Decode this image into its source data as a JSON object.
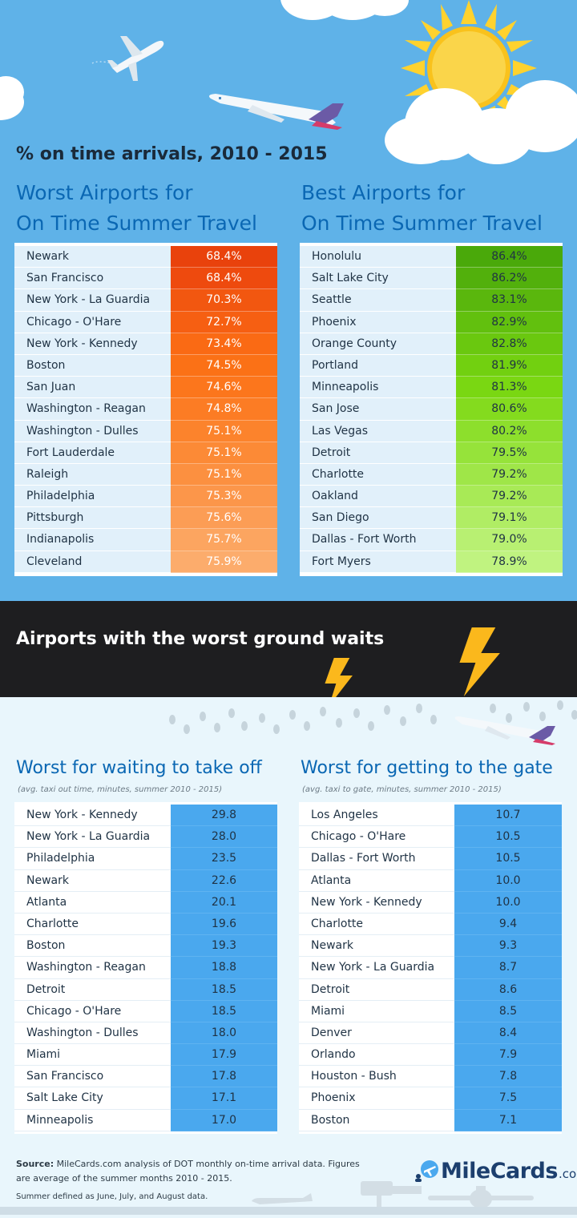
{
  "header": {
    "title": "% on time arrivals, 2010 - 2015"
  },
  "worst_on_time": {
    "title_line1": "Worst Airports for",
    "title_line2": "On Time Summer Travel",
    "rows": [
      {
        "name": "Newark",
        "value": "68.4%",
        "color": "#e9420c"
      },
      {
        "name": "San Francisco",
        "value": "68.4%",
        "color": "#ee4a0e"
      },
      {
        "name": "New York - La Guardia",
        "value": "70.3%",
        "color": "#f25710"
      },
      {
        "name": "Chicago - O'Hare",
        "value": "72.7%",
        "color": "#f65f12"
      },
      {
        "name": "New York - Kennedy",
        "value": "73.4%",
        "color": "#fa6a14"
      },
      {
        "name": "Boston",
        "value": "74.5%",
        "color": "#fb7116"
      },
      {
        "name": "San Juan",
        "value": "74.6%",
        "color": "#fc761c"
      },
      {
        "name": "Washington - Reagan",
        "value": "74.8%",
        "color": "#fc7c24"
      },
      {
        "name": "Washington - Dulles",
        "value": "75.1%",
        "color": "#fc832c"
      },
      {
        "name": "Fort Lauderdale",
        "value": "75.1%",
        "color": "#fc8a36"
      },
      {
        "name": "Raleigh",
        "value": "75.1%",
        "color": "#fc9040"
      },
      {
        "name": "Philadelphia",
        "value": "75.3%",
        "color": "#fc964a"
      },
      {
        "name": "Pittsburgh",
        "value": "75.6%",
        "color": "#fc9d55"
      },
      {
        "name": "Indianapolis",
        "value": "75.7%",
        "color": "#fca560"
      },
      {
        "name": "Cleveland",
        "value": "75.9%",
        "color": "#fcac6c"
      }
    ]
  },
  "best_on_time": {
    "title_line1": "Best Airports for",
    "title_line2": "On Time Summer Travel",
    "rows": [
      {
        "name": "Honolulu",
        "value": "86.4%",
        "color": "#4aa90a"
      },
      {
        "name": "Salt Lake City",
        "value": "86.2%",
        "color": "#52b00c"
      },
      {
        "name": "Seattle",
        "value": "83.1%",
        "color": "#5ab70d"
      },
      {
        "name": "Phoenix",
        "value": "82.9%",
        "color": "#62c00e"
      },
      {
        "name": "Orange County",
        "value": "82.8%",
        "color": "#6ac80f"
      },
      {
        "name": "Portland",
        "value": "81.9%",
        "color": "#72d010"
      },
      {
        "name": "Minneapolis",
        "value": "81.3%",
        "color": "#7ad712"
      },
      {
        "name": "San Jose",
        "value": "80.6%",
        "color": "#84db1e"
      },
      {
        "name": "Las Vegas",
        "value": "80.2%",
        "color": "#8ddf2c"
      },
      {
        "name": "Detroit",
        "value": "79.5%",
        "color": "#96e33a"
      },
      {
        "name": "Charlotte",
        "value": "79.2%",
        "color": "#9fe648"
      },
      {
        "name": "Oakland",
        "value": "79.2%",
        "color": "#a8ea56"
      },
      {
        "name": "San Diego",
        "value": "79.1%",
        "color": "#b0ed64"
      },
      {
        "name": "Dallas - Fort Worth",
        "value": "79.0%",
        "color": "#b8f072"
      },
      {
        "name": "Fort Myers",
        "value": "78.9%",
        "color": "#c0f380"
      }
    ]
  },
  "storm": {
    "title": "Airports with the worst ground waits"
  },
  "takeoff": {
    "title": "Worst for waiting to take off",
    "note": "(avg. taxi out time, minutes, summer 2010 - 2015)",
    "rows": [
      {
        "name": "New York - Kennedy",
        "value": "29.8"
      },
      {
        "name": "New York - La Guardia",
        "value": "28.0"
      },
      {
        "name": "Philadelphia",
        "value": "23.5"
      },
      {
        "name": "Newark",
        "value": "22.6"
      },
      {
        "name": "Atlanta",
        "value": "20.1"
      },
      {
        "name": "Charlotte",
        "value": "19.6"
      },
      {
        "name": "Boston",
        "value": "19.3"
      },
      {
        "name": "Washington - Reagan",
        "value": "18.8"
      },
      {
        "name": "Detroit",
        "value": "18.5"
      },
      {
        "name": "Chicago - O'Hare",
        "value": "18.5"
      },
      {
        "name": "Washington - Dulles",
        "value": "18.0"
      },
      {
        "name": "Miami",
        "value": "17.9"
      },
      {
        "name": "San Francisco",
        "value": "17.8"
      },
      {
        "name": "Salt Lake City",
        "value": "17.1"
      },
      {
        "name": "Minneapolis",
        "value": "17.0"
      }
    ]
  },
  "gate": {
    "title": "Worst for getting to the gate",
    "note": "(avg. taxi to gate, minutes, summer 2010 - 2015)",
    "rows": [
      {
        "name": "Los Angeles",
        "value": "10.7"
      },
      {
        "name": "Chicago - O'Hare",
        "value": "10.5"
      },
      {
        "name": "Dallas - Fort Worth",
        "value": "10.5"
      },
      {
        "name": "Atlanta",
        "value": "10.0"
      },
      {
        "name": "New York - Kennedy",
        "value": "10.0"
      },
      {
        "name": "Charlotte",
        "value": "9.4"
      },
      {
        "name": "Newark",
        "value": "9.3"
      },
      {
        "name": "New York - La Guardia",
        "value": "8.7"
      },
      {
        "name": "Detroit",
        "value": "8.6"
      },
      {
        "name": "Miami",
        "value": "8.5"
      },
      {
        "name": "Denver",
        "value": "8.4"
      },
      {
        "name": "Orlando",
        "value": "7.9"
      },
      {
        "name": "Houston - Bush",
        "value": "7.8"
      },
      {
        "name": "Phoenix",
        "value": "7.5"
      },
      {
        "name": "Boston",
        "value": "7.1"
      }
    ]
  },
  "footer": {
    "source_label": "Source:",
    "source_text": "MileCards.com analysis of DOT monthly on-time arrival data. Figures are average of the summer months 2010 - 2015.",
    "note": "Summer defined as June, July, and August data.",
    "logo_main": "MileCards",
    "logo_suffix": ".com"
  },
  "colors": {
    "sky": "#5fb2e8",
    "title_blue": "#0a67b3",
    "name_cell": "#e1f0fa",
    "bar_blue": "#4aa8ee",
    "storm": "#1e1e20",
    "lower_bg": "#e9f6fc"
  },
  "chart_data": [
    {
      "type": "table",
      "title": "Worst Airports for On Time Summer Travel",
      "categories": [
        "Newark",
        "San Francisco",
        "New York - La Guardia",
        "Chicago - O'Hare",
        "New York - Kennedy",
        "Boston",
        "San Juan",
        "Washington - Reagan",
        "Washington - Dulles",
        "Fort Lauderdale",
        "Raleigh",
        "Philadelphia",
        "Pittsburgh",
        "Indianapolis",
        "Cleveland"
      ],
      "values": [
        68.4,
        68.4,
        70.3,
        72.7,
        73.4,
        74.5,
        74.6,
        74.8,
        75.1,
        75.1,
        75.1,
        75.3,
        75.6,
        75.7,
        75.9
      ]
    },
    {
      "type": "table",
      "title": "Best Airports for On Time Summer Travel",
      "categories": [
        "Honolulu",
        "Salt Lake City",
        "Seattle",
        "Phoenix",
        "Orange County",
        "Portland",
        "Minneapolis",
        "San Jose",
        "Las Vegas",
        "Detroit",
        "Charlotte",
        "Oakland",
        "San Diego",
        "Dallas - Fort Worth",
        "Fort Myers"
      ],
      "values": [
        86.4,
        86.2,
        83.1,
        82.9,
        82.8,
        81.9,
        81.3,
        80.6,
        80.2,
        79.5,
        79.2,
        79.2,
        79.1,
        79.0,
        78.9
      ]
    },
    {
      "type": "table",
      "title": "Worst for waiting to take off",
      "categories": [
        "New York - Kennedy",
        "New York - La Guardia",
        "Philadelphia",
        "Newark",
        "Atlanta",
        "Charlotte",
        "Boston",
        "Washington - Reagan",
        "Detroit",
        "Chicago - O'Hare",
        "Washington - Dulles",
        "Miami",
        "San Francisco",
        "Salt Lake City",
        "Minneapolis"
      ],
      "values": [
        29.8,
        28.0,
        23.5,
        22.6,
        20.1,
        19.6,
        19.3,
        18.8,
        18.5,
        18.5,
        18.0,
        17.9,
        17.8,
        17.1,
        17.0
      ]
    },
    {
      "type": "table",
      "title": "Worst for getting to the gate",
      "categories": [
        "Los Angeles",
        "Chicago - O'Hare",
        "Dallas - Fort Worth",
        "Atlanta",
        "New York - Kennedy",
        "Charlotte",
        "Newark",
        "New York - La Guardia",
        "Detroit",
        "Miami",
        "Denver",
        "Orlando",
        "Houston - Bush",
        "Phoenix",
        "Boston"
      ],
      "values": [
        10.7,
        10.5,
        10.5,
        10.0,
        10.0,
        9.4,
        9.3,
        8.7,
        8.6,
        8.5,
        8.4,
        7.9,
        7.8,
        7.5,
        7.1
      ]
    }
  ]
}
